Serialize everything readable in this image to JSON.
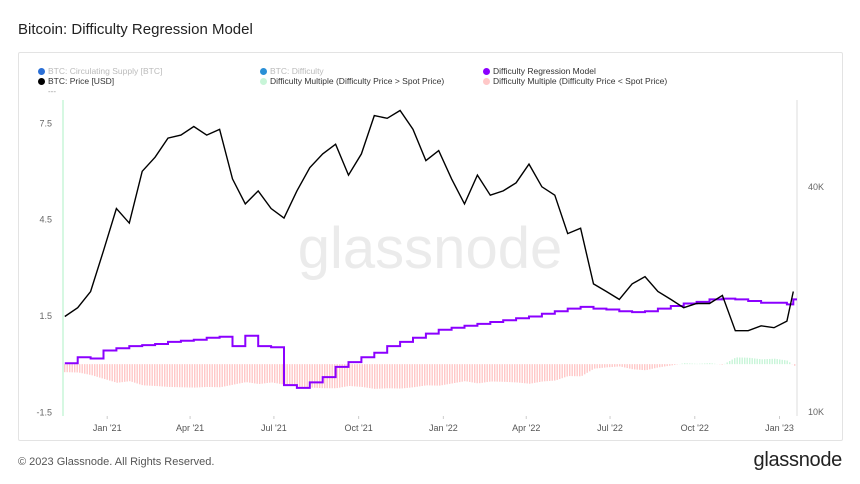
{
  "title": "Bitcoin: Difficulty Regression Model",
  "legend": [
    {
      "label": "BTC: Circulating Supply [BTC]",
      "color": "#2a6fd6",
      "active": false
    },
    {
      "label": "BTC: Difficulty",
      "color": "#2a8fd6",
      "active": false
    },
    {
      "label": "Difficulty Regression Model",
      "color": "#8b00ff",
      "active": true
    },
    {
      "label": "BTC: Price [USD]",
      "color": "#000000",
      "active": true
    },
    {
      "label": "Difficulty Multiple (Difficulty Price > Spot Price)",
      "color": "#c8f5d8",
      "active": true
    },
    {
      "label": "Difficulty Multiple (Difficulty Price < Spot Price)",
      "color": "#ffc8c8",
      "active": true
    }
  ],
  "more": "---",
  "watermark": "glassnode",
  "footer": "© 2023 Glassnode. All Rights Reserved.",
  "logo": "glassnode",
  "chart_data": {
    "type": "line",
    "title": "Bitcoin: Difficulty Regression Model",
    "x_ticks": [
      "Jan '21",
      "Apr '21",
      "Jul '21",
      "Oct '21",
      "Jan '22",
      "Apr '22",
      "Jul '22",
      "Oct '22",
      "Jan '23"
    ],
    "left_axis": {
      "ticks": [
        "7.5",
        "4.5",
        "1.5",
        "-1.5"
      ],
      "range": [
        -1.5,
        7.5
      ]
    },
    "right_axis": {
      "ticks": [
        "40K",
        "10K"
      ],
      "scale": "log",
      "range": [
        10000,
        80000
      ]
    },
    "x": [
      "2020-11-16",
      "2020-11-30",
      "2020-12-14",
      "2020-12-28",
      "2021-01-11",
      "2021-01-25",
      "2021-02-08",
      "2021-02-22",
      "2021-03-08",
      "2021-03-22",
      "2021-04-05",
      "2021-04-19",
      "2021-05-03",
      "2021-05-17",
      "2021-05-31",
      "2021-06-14",
      "2021-06-28",
      "2021-07-12",
      "2021-07-26",
      "2021-08-09",
      "2021-08-23",
      "2021-09-06",
      "2021-09-20",
      "2021-10-04",
      "2021-10-18",
      "2021-11-01",
      "2021-11-15",
      "2021-11-29",
      "2021-12-13",
      "2021-12-27",
      "2022-01-10",
      "2022-01-24",
      "2022-02-07",
      "2022-02-21",
      "2022-03-07",
      "2022-03-21",
      "2022-04-04",
      "2022-04-18",
      "2022-05-02",
      "2022-05-16",
      "2022-05-30",
      "2022-06-13",
      "2022-06-27",
      "2022-07-11",
      "2022-07-25",
      "2022-08-08",
      "2022-08-22",
      "2022-09-05",
      "2022-09-19",
      "2022-10-03",
      "2022-10-17",
      "2022-10-31",
      "2022-11-14",
      "2022-11-28",
      "2022-12-12",
      "2022-12-26",
      "2023-01-09",
      "2023-01-16"
    ],
    "series": [
      {
        "name": "BTC: Price [USD]",
        "axis": "right",
        "values": [
          18000,
          19000,
          21000,
          27000,
          35000,
          32000,
          44000,
          48000,
          54000,
          55000,
          58000,
          55000,
          57000,
          42000,
          36000,
          39000,
          35000,
          33000,
          39000,
          45000,
          49000,
          52000,
          43000,
          49000,
          62000,
          61000,
          64000,
          57000,
          47000,
          50000,
          42000,
          36000,
          43000,
          38000,
          39000,
          41000,
          46000,
          40000,
          38000,
          30000,
          31000,
          22000,
          21000,
          20000,
          22000,
          23000,
          21000,
          20000,
          19000,
          19500,
          19500,
          20500,
          16500,
          16500,
          17000,
          16800,
          17500,
          21000
        ]
      },
      {
        "name": "Difficulty Regression Model",
        "axis": "right",
        "values": [
          13500,
          14000,
          13900,
          14600,
          14800,
          15000,
          15100,
          15200,
          15400,
          15500,
          15600,
          15800,
          15900,
          15000,
          16000,
          15000,
          14900,
          11800,
          11600,
          12000,
          12400,
          13200,
          13600,
          14000,
          14400,
          15000,
          15400,
          15800,
          16200,
          16600,
          16800,
          17000,
          17200,
          17400,
          17600,
          17800,
          18000,
          18300,
          18600,
          18900,
          19100,
          18900,
          18800,
          18600,
          18500,
          18600,
          18900,
          19200,
          19500,
          19700,
          20000,
          20100,
          20000,
          19800,
          19600,
          19600,
          19400,
          20000
        ]
      },
      {
        "name": "Difficulty Multiple",
        "axis": "left",
        "values": [
          -0.25,
          -0.26,
          -0.34,
          -0.46,
          -0.58,
          -0.53,
          -0.66,
          -0.68,
          -0.71,
          -0.72,
          -0.73,
          -0.71,
          -0.72,
          -0.64,
          -0.56,
          -0.62,
          -0.57,
          -0.64,
          -0.7,
          -0.73,
          -0.75,
          -0.75,
          -0.68,
          -0.71,
          -0.77,
          -0.75,
          -0.76,
          -0.72,
          -0.66,
          -0.67,
          -0.6,
          -0.53,
          -0.6,
          -0.54,
          -0.55,
          -0.57,
          -0.61,
          -0.54,
          -0.51,
          -0.37,
          -0.38,
          -0.14,
          -0.1,
          -0.07,
          -0.16,
          -0.19,
          -0.1,
          -0.04,
          0.03,
          0.01,
          0.03,
          -0.02,
          0.21,
          0.2,
          0.15,
          0.17,
          0.11,
          -0.05
        ]
      }
    ]
  }
}
